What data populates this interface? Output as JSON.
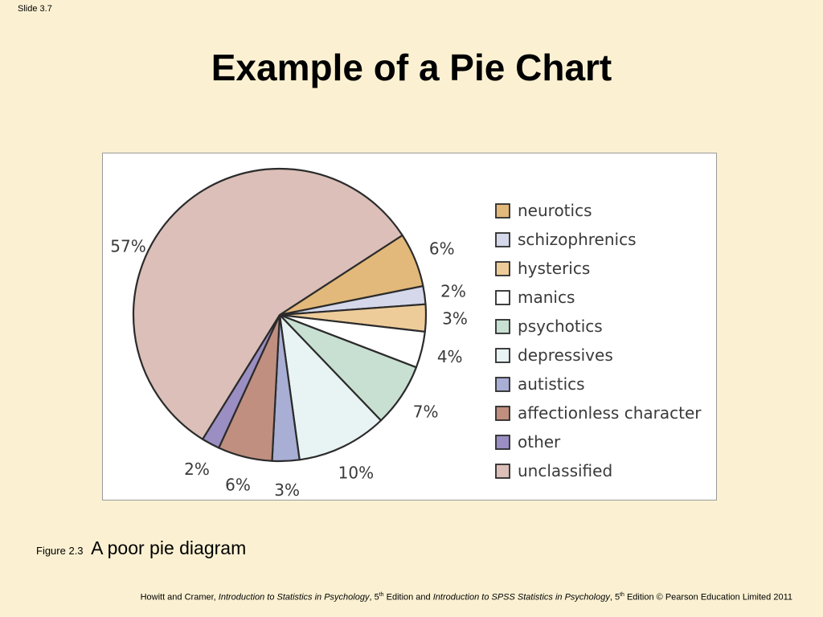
{
  "slide": {
    "number_label": "Slide 3.7",
    "title": "Example of a Pie Chart"
  },
  "chart_data": {
    "type": "pie",
    "title": "",
    "categories": [
      "neurotics",
      "schizophrenics",
      "hysterics",
      "manics",
      "psychotics",
      "depressives",
      "autistics",
      "affectionless character",
      "other",
      "unclassified"
    ],
    "values": [
      6,
      2,
      3,
      4,
      7,
      10,
      3,
      6,
      2,
      57
    ],
    "value_labels": [
      "6%",
      "2%",
      "3%",
      "4%",
      "7%",
      "10%",
      "3%",
      "6%",
      "2%",
      "57%"
    ],
    "colors": [
      "#e2b97a",
      "#d5d8ea",
      "#eecc9a",
      "#ffffff",
      "#c8e0d2",
      "#e8f3f3",
      "#a9aed4",
      "#c08f80",
      "#9a8ec2",
      "#dbbfb8"
    ],
    "legend_position": "right",
    "start_angle_deg": 57,
    "direction": "clockwise"
  },
  "caption": {
    "figure_label": "Figure 2.3",
    "figure_title": "A poor pie diagram"
  },
  "footer": {
    "authors": "Howitt and Cramer, ",
    "book1": "Introduction to Statistics in Psychology",
    "edition1_pre": ", 5",
    "edition1_sup": "th",
    "edition1_post": " Edition and ",
    "book2": "Introduction to SPSS Statistics in Psychology",
    "edition2_pre": ", 5",
    "edition2_sup": "th",
    "edition2_post": " Edition © Pearson Education Limited 2011"
  }
}
